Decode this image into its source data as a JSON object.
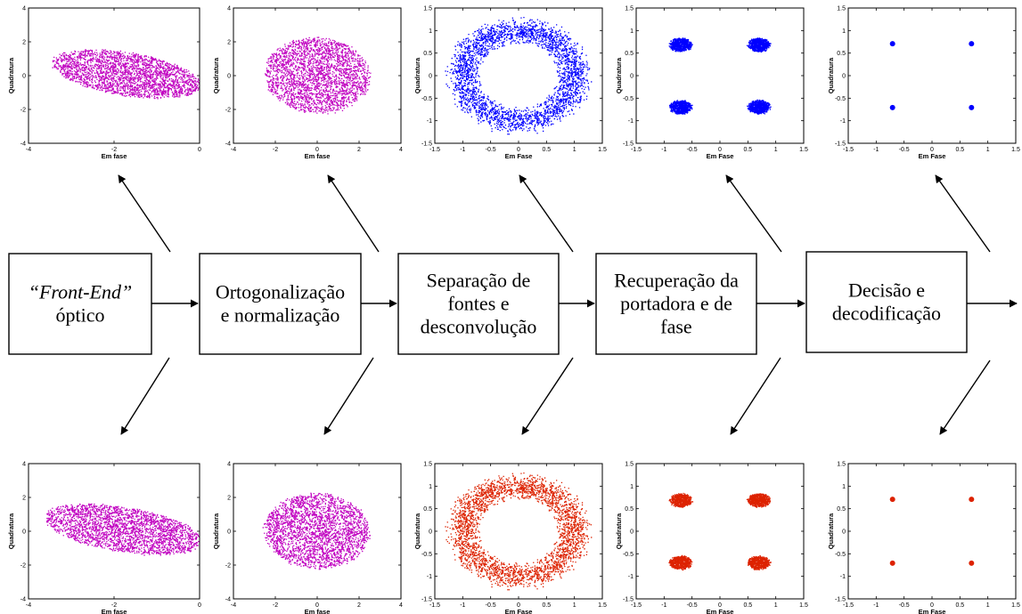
{
  "blocks": [
    {
      "label_lines": [
        [
          {
            "text": "“Front-End”",
            "italic": true
          }
        ],
        [
          {
            "text": "óptico",
            "italic": false
          }
        ]
      ]
    },
    {
      "label_lines": [
        [
          {
            "text": "Ortogonalização",
            "italic": false
          }
        ],
        [
          {
            "text": "e normalização",
            "italic": false
          }
        ]
      ]
    },
    {
      "label_lines": [
        [
          {
            "text": "Separação de",
            "italic": false
          }
        ],
        [
          {
            "text": "fontes e",
            "italic": false
          }
        ],
        [
          {
            "text": "desconvolução",
            "italic": false
          }
        ]
      ]
    },
    {
      "label_lines": [
        [
          {
            "text": "Recuperação da",
            "italic": false
          }
        ],
        [
          {
            "text": "portadora e de",
            "italic": false
          }
        ],
        [
          {
            "text": "fase",
            "italic": false
          }
        ]
      ]
    },
    {
      "label_lines": [
        [
          {
            "text": "Decisão e",
            "italic": false
          }
        ],
        [
          {
            "text": "decodificação",
            "italic": false
          }
        ]
      ]
    }
  ],
  "colors": {
    "magenta": "#c000c0",
    "blue": "#0000ff",
    "red": "#dd2200",
    "line": "#000000"
  },
  "chart_data": [
    {
      "type": "scatter",
      "row": "top",
      "stage": 1,
      "color": "magenta",
      "shape": "ellipse",
      "center": [
        -1.7,
        0.1
      ],
      "radii": [
        2.0,
        1.2
      ],
      "rotation_deg": -33,
      "xlim": [
        -4,
        0
      ],
      "ylim": [
        -4,
        4
      ],
      "xticks": [
        "-4",
        "-2",
        "0"
      ],
      "yticks": [
        "4",
        "2",
        "0",
        "-2",
        "-4"
      ],
      "xlabel": "Em fase",
      "ylabel": "Quadratura"
    },
    {
      "type": "scatter",
      "row": "top",
      "stage": 2,
      "color": "magenta",
      "shape": "ellipse",
      "center": [
        0.0,
        0.0
      ],
      "radii": [
        2.6,
        2.3
      ],
      "rotation_deg": -10,
      "xlim": [
        -4,
        4
      ],
      "ylim": [
        -4,
        4
      ],
      "xticks": [
        "-4",
        "-2",
        "0",
        "2",
        "4"
      ],
      "yticks": [
        "4",
        "2",
        "0",
        "-2",
        "-4"
      ],
      "xlabel": "Em fase",
      "ylabel": "Quadratura"
    },
    {
      "type": "scatter",
      "row": "top",
      "stage": 3,
      "color": "blue",
      "shape": "ring",
      "center": [
        0.0,
        0.0
      ],
      "radii": [
        0.75,
        1.25
      ],
      "xlim": [
        -1.5,
        1.5
      ],
      "ylim": [
        -1.5,
        1.5
      ],
      "xticks": [
        "-1.5",
        "-1",
        "-0.5",
        "0",
        "0.5",
        "1",
        "1.5"
      ],
      "yticks": [
        "1.5",
        "1",
        "0.5",
        "0",
        "-0.5",
        "-1",
        "-1.5"
      ],
      "xlabel": "Em Fase",
      "ylabel": "Quadratura"
    },
    {
      "type": "scatter",
      "row": "top",
      "stage": 4,
      "color": "blue",
      "shape": "clusters",
      "points": [
        [
          -0.7,
          0.68
        ],
        [
          0.7,
          0.68
        ],
        [
          -0.7,
          -0.7
        ],
        [
          0.7,
          -0.7
        ]
      ],
      "spread": 0.2,
      "xlim": [
        -1.5,
        1.5
      ],
      "ylim": [
        -1.5,
        1.5
      ],
      "xticks": [
        "-1.5",
        "-1",
        "-0.5",
        "0",
        "0.5",
        "1",
        "1.5"
      ],
      "yticks": [
        "1.5",
        "1",
        "0.5",
        "0",
        "-0.5",
        "-1",
        "-1.5"
      ],
      "xlabel": "Em Fase",
      "ylabel": "Quadratura"
    },
    {
      "type": "scatter",
      "row": "top",
      "stage": 5,
      "color": "blue",
      "shape": "points",
      "points": [
        [
          -0.707,
          0.707
        ],
        [
          0.707,
          0.707
        ],
        [
          -0.707,
          -0.707
        ],
        [
          0.707,
          -0.707
        ]
      ],
      "xlim": [
        -1.5,
        1.5
      ],
      "ylim": [
        -1.5,
        1.5
      ],
      "xticks": [
        "-1.5",
        "-1",
        "-0.5",
        "0",
        "0.5",
        "1",
        "1.5"
      ],
      "yticks": [
        "1.5",
        "1",
        "0.5",
        "0",
        "-0.5",
        "-1",
        "-1.5"
      ],
      "xlabel": "Em Fase",
      "ylabel": "Quadratura"
    },
    {
      "type": "scatter",
      "row": "bottom",
      "stage": 1,
      "color": "magenta",
      "shape": "ellipse",
      "center": [
        -1.8,
        0.1
      ],
      "radii": [
        2.1,
        1.25
      ],
      "rotation_deg": -33,
      "xlim": [
        -4,
        0
      ],
      "ylim": [
        -4,
        4
      ],
      "xticks": [
        "-4",
        "-2",
        "0"
      ],
      "yticks": [
        "4",
        "2",
        "0",
        "-2",
        "-4"
      ],
      "xlabel": "Em fase",
      "ylabel": "Quadratura"
    },
    {
      "type": "scatter",
      "row": "bottom",
      "stage": 2,
      "color": "magenta",
      "shape": "ellipse",
      "center": [
        0.0,
        0.0
      ],
      "radii": [
        2.6,
        2.3
      ],
      "rotation_deg": -10,
      "xlim": [
        -4,
        4
      ],
      "ylim": [
        -4,
        4
      ],
      "xticks": [
        "-4",
        "-2",
        "0",
        "2",
        "4"
      ],
      "yticks": [
        "4",
        "2",
        "0",
        "-2",
        "-4"
      ],
      "xlabel": "Em fase",
      "ylabel": "Quadratura"
    },
    {
      "type": "scatter",
      "row": "bottom",
      "stage": 3,
      "color": "red",
      "shape": "ring",
      "center": [
        0.0,
        0.0
      ],
      "radii": [
        0.75,
        1.25
      ],
      "xlim": [
        -1.5,
        1.5
      ],
      "ylim": [
        -1.5,
        1.5
      ],
      "xticks": [
        "-1.5",
        "-1",
        "-0.5",
        "0",
        "0.5",
        "1",
        "1.5"
      ],
      "yticks": [
        "1.5",
        "1",
        "0.5",
        "0",
        "-0.5",
        "-1",
        "-1.5"
      ],
      "xlabel": "Em Fase",
      "ylabel": "Quadratura"
    },
    {
      "type": "scatter",
      "row": "bottom",
      "stage": 4,
      "color": "red",
      "shape": "clusters",
      "points": [
        [
          -0.7,
          0.68
        ],
        [
          0.7,
          0.68
        ],
        [
          -0.7,
          -0.7
        ],
        [
          0.7,
          -0.7
        ]
      ],
      "spread": 0.2,
      "xlim": [
        -1.5,
        1.5
      ],
      "ylim": [
        -1.5,
        1.5
      ],
      "xticks": [
        "-1.5",
        "-1",
        "-0.5",
        "0",
        "0.5",
        "1",
        "1.5"
      ],
      "yticks": [
        "1.5",
        "1",
        "0.5",
        "0",
        "-0.5",
        "-1",
        "-1.5"
      ],
      "xlabel": "Em Fase",
      "ylabel": "Quadratura"
    },
    {
      "type": "scatter",
      "row": "bottom",
      "stage": 5,
      "color": "red",
      "shape": "points",
      "points": [
        [
          -0.707,
          0.707
        ],
        [
          0.707,
          0.707
        ],
        [
          -0.707,
          -0.707
        ],
        [
          0.707,
          -0.707
        ]
      ],
      "xlim": [
        -1.5,
        1.5
      ],
      "ylim": [
        -1.5,
        1.5
      ],
      "xticks": [
        "-1.5",
        "-1",
        "-0.5",
        "0",
        "0.5",
        "1",
        "1.5"
      ],
      "yticks": [
        "1.5",
        "1",
        "0.5",
        "0",
        "-0.5",
        "-1",
        "-1.5"
      ],
      "xlabel": "Em Fase",
      "ylabel": "Quadratura"
    }
  ]
}
